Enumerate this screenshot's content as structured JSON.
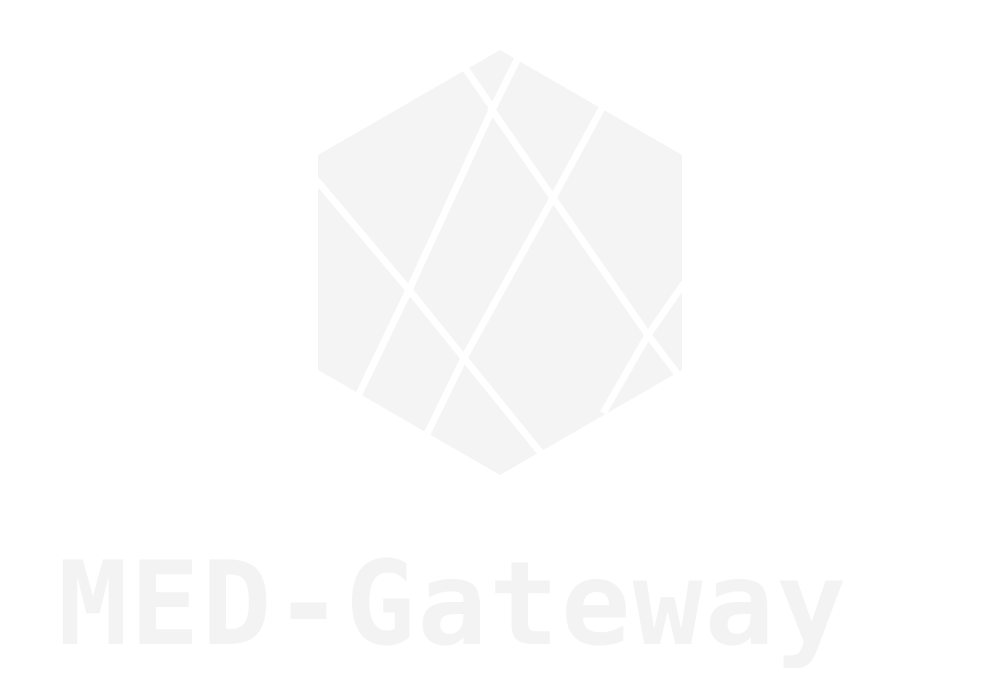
{
  "brand": {
    "name": "MED-Gateway",
    "logo_icon": "faceted-hexagon-icon",
    "colors": {
      "background": "#ffffff",
      "logo_fill": "#f4f4f4",
      "logo_lines": "#ffffff",
      "wordmark": "#f3f3f3"
    }
  }
}
